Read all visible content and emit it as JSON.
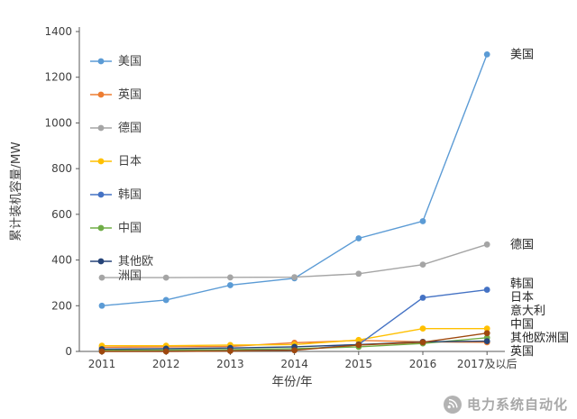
{
  "page": {
    "background": "#ffffff"
  },
  "watermark": {
    "text": "电力系统自动化",
    "icon": "signal-logo"
  },
  "chart_data": {
    "type": "line",
    "title": "",
    "xlabel": "年份/年",
    "ylabel": "累计装机容量/MW",
    "ylim": [
      0,
      1400
    ],
    "yticks": [
      0,
      200,
      400,
      600,
      800,
      1000,
      1200,
      1400
    ],
    "categories": [
      "2011",
      "2012",
      "2013",
      "2014",
      "2015",
      "2016",
      "2017及以后"
    ],
    "grid": false,
    "legend_position": "top-left-inside",
    "series": [
      {
        "name": "美国",
        "color": "#5B9BD5",
        "in_legend": true,
        "values": [
          200,
          225,
          290,
          320,
          495,
          570,
          1300
        ]
      },
      {
        "name": "英国",
        "color": "#ED7D31",
        "in_legend": true,
        "values": [
          18,
          20,
          22,
          38,
          48,
          42,
          40
        ]
      },
      {
        "name": "德国",
        "color": "#A5A5A5",
        "in_legend": true,
        "values": [
          323,
          323,
          324,
          325,
          340,
          380,
          468
        ]
      },
      {
        "name": "日本",
        "color": "#FFC000",
        "in_legend": true,
        "values": [
          25,
          25,
          28,
          30,
          50,
          100,
          100
        ]
      },
      {
        "name": "韩国",
        "color": "#4472C4",
        "in_legend": true,
        "values": [
          2,
          3,
          5,
          6,
          30,
          235,
          270
        ]
      },
      {
        "name": "中国",
        "color": "#70AD47",
        "in_legend": true,
        "values": [
          5,
          6,
          8,
          12,
          20,
          35,
          60
        ]
      },
      {
        "name": "其他欧洲国",
        "legend_label": "其他欧\n洲国",
        "color": "#264478",
        "in_legend": true,
        "values": [
          10,
          12,
          15,
          20,
          30,
          42,
          45
        ]
      },
      {
        "name": "意大利",
        "color": "#9E480E",
        "in_legend": false,
        "values": [
          0,
          0,
          2,
          5,
          28,
          40,
          80
        ]
      }
    ]
  }
}
